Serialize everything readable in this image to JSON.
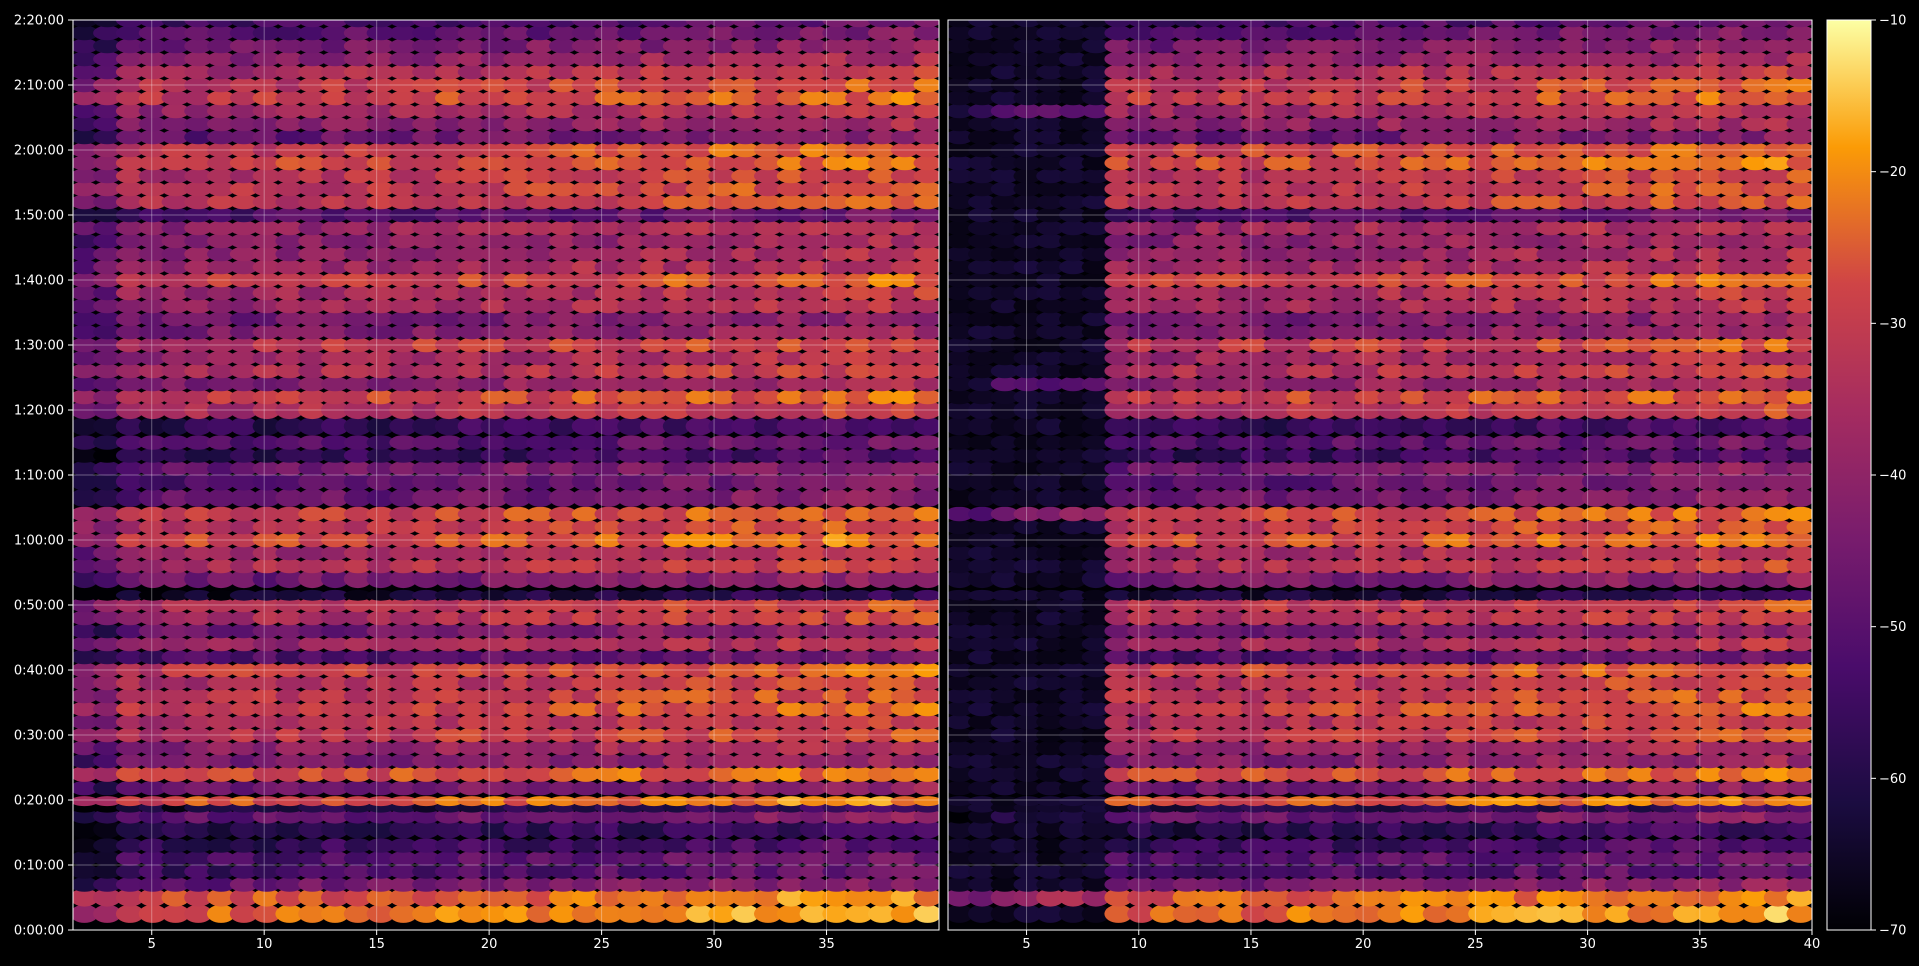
{
  "chart_data": {
    "type": "heatmap",
    "title": "",
    "xlabel": "",
    "ylabel": "",
    "grid": true,
    "panels": [
      {
        "name": "",
        "xlim": [
          1.5,
          40
        ],
        "x_ticks": [
          "5",
          "10",
          "15",
          "20",
          "25",
          "30",
          "35"
        ],
        "x_tick_values": [
          5,
          10,
          15,
          20,
          25,
          30,
          35
        ]
      },
      {
        "name": "",
        "xlim": [
          1.5,
          40
        ],
        "x_ticks": [
          "5",
          "10",
          "15",
          "20",
          "25",
          "30",
          "35",
          "40"
        ],
        "x_tick_values": [
          5,
          10,
          15,
          20,
          25,
          30,
          35,
          40
        ]
      }
    ],
    "ylim_seconds": [
      0,
      8400
    ],
    "y_ticks": [
      "0:00:00",
      "0:10:00",
      "0:20:00",
      "0:30:00",
      "0:40:00",
      "0:50:00",
      "1:00:00",
      "1:10:00",
      "1:20:00",
      "1:30:00",
      "1:40:00",
      "1:50:00",
      "2:00:00",
      "2:10:00",
      "2:20:00"
    ],
    "y_tick_values": [
      0,
      600,
      1200,
      1800,
      2400,
      3000,
      3600,
      4200,
      4800,
      5400,
      6000,
      6600,
      7200,
      7800,
      8400
    ],
    "colorbar": {
      "range": [
        -70,
        -10
      ],
      "ticks": [
        "−10",
        "−20",
        "−30",
        "−40",
        "−50",
        "−60",
        "−70"
      ],
      "tick_values": [
        -10,
        -20,
        -30,
        -40,
        -50,
        -60,
        -70
      ],
      "colormap": "inferno"
    },
    "x_bins": 38,
    "row_profile": [
      {
        "t": 150,
        "v": -22
      },
      {
        "t": 300,
        "v": -24
      },
      {
        "t": 420,
        "v": -45
      },
      {
        "t": 540,
        "v": -52
      },
      {
        "t": 660,
        "v": -50
      },
      {
        "t": 780,
        "v": -55
      },
      {
        "t": 930,
        "v": -58
      },
      {
        "t": 1050,
        "v": -46
      },
      {
        "t": 1130,
        "v": -60
      },
      {
        "t": 1190,
        "v": -24
      },
      {
        "t": 1310,
        "v": -44
      },
      {
        "t": 1440,
        "v": -26
      },
      {
        "t": 1560,
        "v": -42
      },
      {
        "t": 1680,
        "v": -38
      },
      {
        "t": 1800,
        "v": -30
      },
      {
        "t": 1920,
        "v": -33
      },
      {
        "t": 2040,
        "v": -28
      },
      {
        "t": 2160,
        "v": -30
      },
      {
        "t": 2280,
        "v": -32
      },
      {
        "t": 2400,
        "v": -28
      },
      {
        "t": 2520,
        "v": -50
      },
      {
        "t": 2640,
        "v": -36
      },
      {
        "t": 2760,
        "v": -44
      },
      {
        "t": 2880,
        "v": -33
      },
      {
        "t": 3000,
        "v": -31
      },
      {
        "t": 3090,
        "v": -62
      },
      {
        "t": 3240,
        "v": -44
      },
      {
        "t": 3360,
        "v": -32
      },
      {
        "t": 3480,
        "v": -36
      },
      {
        "t": 3600,
        "v": -26
      },
      {
        "t": 3720,
        "v": -30
      },
      {
        "t": 3840,
        "v": -28
      },
      {
        "t": 3990,
        "v": -46
      },
      {
        "t": 4140,
        "v": -48
      },
      {
        "t": 4260,
        "v": -45
      },
      {
        "t": 4380,
        "v": -56
      },
      {
        "t": 4500,
        "v": -50
      },
      {
        "t": 4650,
        "v": -56
      },
      {
        "t": 4800,
        "v": -33
      },
      {
        "t": 4920,
        "v": -28
      },
      {
        "t": 5040,
        "v": -40
      },
      {
        "t": 5160,
        "v": -33
      },
      {
        "t": 5280,
        "v": -36
      },
      {
        "t": 5400,
        "v": -30
      },
      {
        "t": 5520,
        "v": -42
      },
      {
        "t": 5640,
        "v": -44
      },
      {
        "t": 5760,
        "v": -36
      },
      {
        "t": 5880,
        "v": -35
      },
      {
        "t": 6000,
        "v": -28
      },
      {
        "t": 6120,
        "v": -36
      },
      {
        "t": 6240,
        "v": -38
      },
      {
        "t": 6360,
        "v": -40
      },
      {
        "t": 6480,
        "v": -37
      },
      {
        "t": 6600,
        "v": -50
      },
      {
        "t": 6720,
        "v": -30
      },
      {
        "t": 6840,
        "v": -30
      },
      {
        "t": 6960,
        "v": -31
      },
      {
        "t": 7080,
        "v": -27
      },
      {
        "t": 7200,
        "v": -28
      },
      {
        "t": 7320,
        "v": -46
      },
      {
        "t": 7440,
        "v": -40
      },
      {
        "t": 7560,
        "v": -36
      },
      {
        "t": 7680,
        "v": -28
      },
      {
        "t": 7800,
        "v": -30
      },
      {
        "t": 7920,
        "v": -34
      },
      {
        "t": 8040,
        "v": -40
      },
      {
        "t": 8160,
        "v": -44
      },
      {
        "t": 8280,
        "v": -48
      },
      {
        "t": 8400,
        "v": -52
      }
    ],
    "bright_bands_seconds": [
      270,
      1000,
      3810,
      5060,
      7530
    ],
    "right_panel_quiet_until_x": 9
  }
}
